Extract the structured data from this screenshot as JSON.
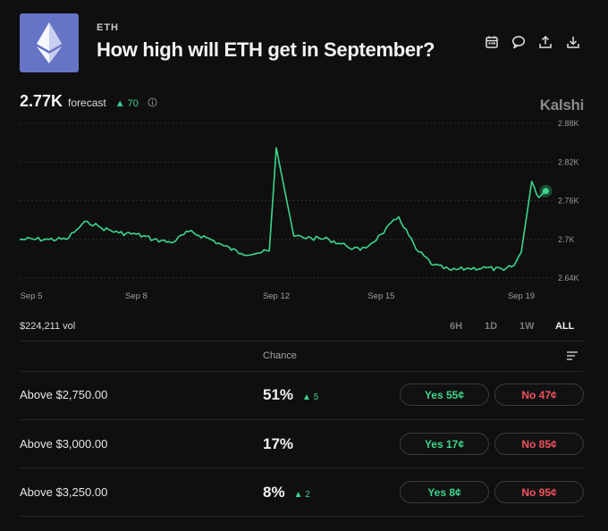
{
  "header": {
    "ticker": "ETH",
    "title": "How high will ETH get in September?",
    "icons": [
      "calendar-icon",
      "comment-icon",
      "share-icon",
      "download-icon"
    ]
  },
  "forecast": {
    "value": "2.77K",
    "label": "forecast",
    "delta": "▲ 70"
  },
  "brand": "Kalshi",
  "chart_data": {
    "type": "line",
    "series": [
      {
        "color": "#3dd68c",
        "x": [
          "Sep 5",
          "Sep 5.5",
          "Sep 6",
          "Sep 6.3",
          "Sep 6.6",
          "Sep 7",
          "Sep 7.5",
          "Sep 8",
          "Sep 8.5",
          "Sep 9",
          "Sep 9.5",
          "Sep 10",
          "Sep 10.5",
          "Sep 11",
          "Sep 11.5",
          "Sep 11.8",
          "Sep 12",
          "Sep 12.5",
          "Sep 13",
          "Sep 13.5",
          "Sep 14",
          "Sep 14.4",
          "Sep 14.7",
          "Sep 15",
          "Sep 15.5",
          "Sep 16",
          "Sep 16.5",
          "Sep 17",
          "Sep 17.5",
          "Sep 18",
          "Sep 18.5",
          "Sep 18.8",
          "Sep 19",
          "Sep 19.3",
          "Sep 19.5",
          "Sep 19.7"
        ],
        "values": [
          2700,
          2700,
          2700,
          2715,
          2728,
          2718,
          2710,
          2708,
          2700,
          2695,
          2712,
          2703,
          2690,
          2678,
          2679,
          2682,
          2842,
          2705,
          2702,
          2700,
          2690,
          2683,
          2693,
          2708,
          2735,
          2684,
          2660,
          2652,
          2655,
          2656,
          2652,
          2660,
          2680,
          2790,
          2765,
          2775
        ]
      }
    ],
    "x_tick_labels": [
      "Sep 5",
      "Sep 8",
      "Sep 12",
      "Sep 15",
      "Sep 19"
    ],
    "y_tick_labels": [
      "2.88K",
      "2.82K",
      "2.76K",
      "2.7K",
      "2.64K"
    ],
    "ylim": [
      2640,
      2880
    ],
    "grid": true,
    "endpoint_marker": true
  },
  "volume": "$224,211 vol",
  "ranges": [
    {
      "label": "6H",
      "active": false
    },
    {
      "label": "1D",
      "active": false
    },
    {
      "label": "1W",
      "active": false
    },
    {
      "label": "ALL",
      "active": true
    }
  ],
  "table": {
    "chance_header": "Chance",
    "rows": [
      {
        "label": "Above $2,750.00",
        "chance": "51%",
        "delta": "▲ 5",
        "yes": "Yes 55¢",
        "no": "No 47¢"
      },
      {
        "label": "Above $3,000.00",
        "chance": "17%",
        "delta": "",
        "yes": "Yes 17¢",
        "no": "No 85¢"
      },
      {
        "label": "Above $3,250.00",
        "chance": "8%",
        "delta": "▲ 2",
        "yes": "Yes 8¢",
        "no": "No 95¢"
      }
    ]
  }
}
